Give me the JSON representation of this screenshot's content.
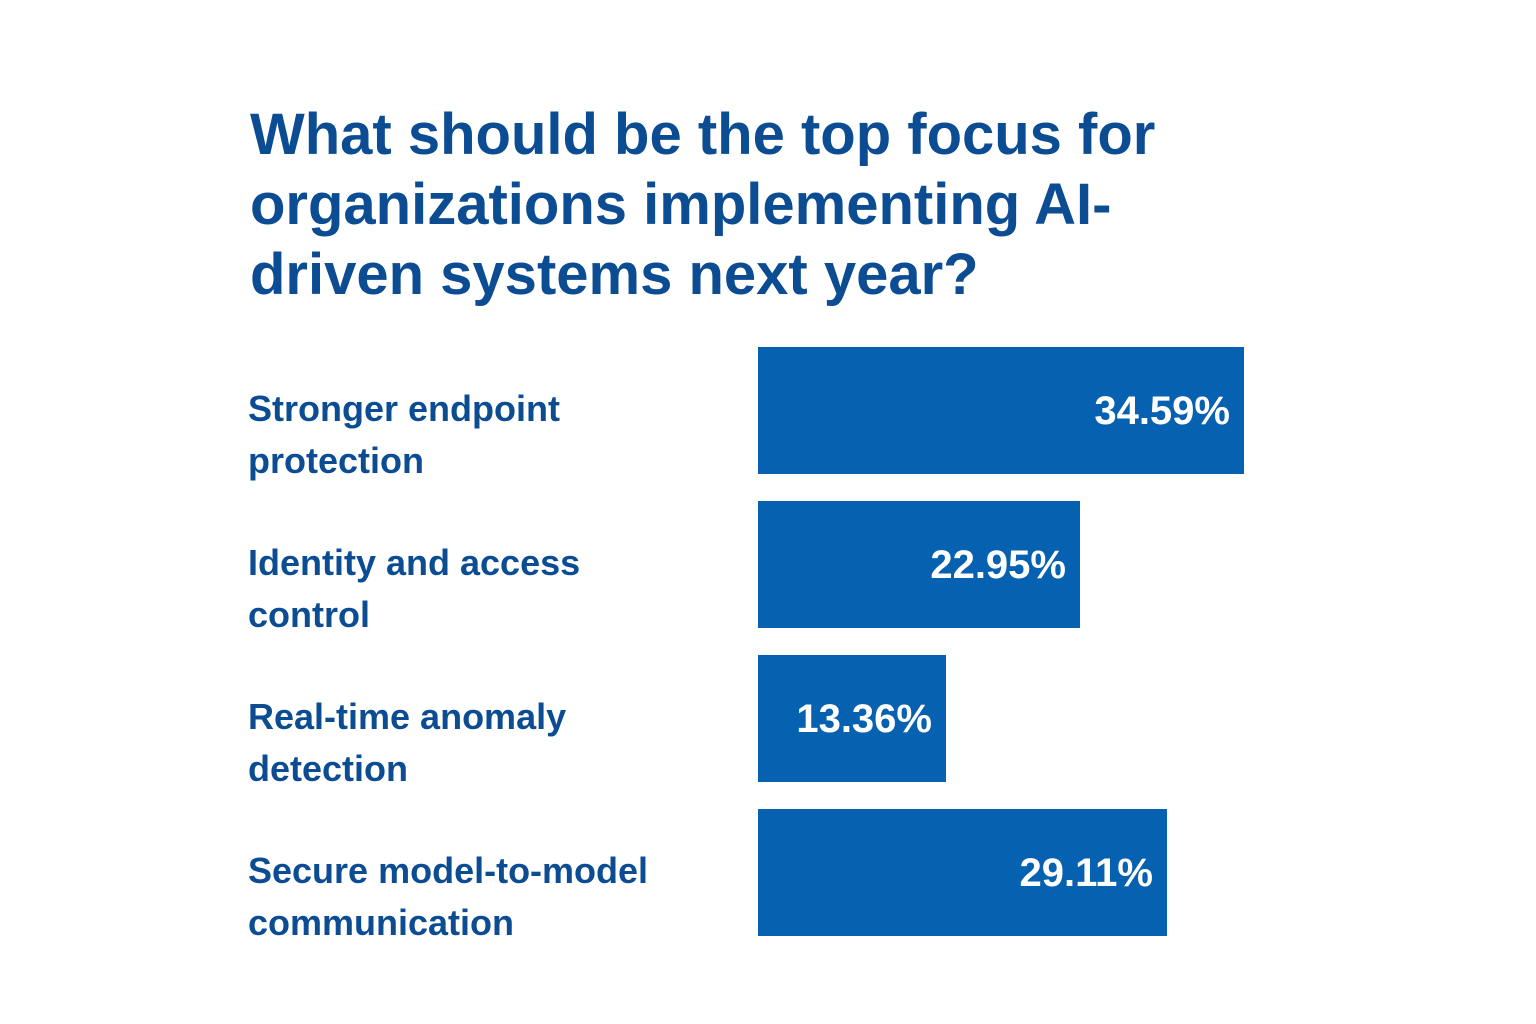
{
  "chart_data": {
    "type": "bar",
    "orientation": "horizontal",
    "title": "What should be the top focus for organizations implementing AI-driven systems next year?",
    "categories": [
      "Stronger endpoint protection",
      "Identity and access control",
      "Real-time anomaly detection",
      "Secure model-to-model communication"
    ],
    "values": [
      34.59,
      22.95,
      13.36,
      29.11
    ],
    "value_labels": [
      "34.59%",
      "22.95%",
      "13.36%",
      "29.11%"
    ],
    "unit": "%",
    "xlabel": "",
    "ylabel": "",
    "xlim": [
      0,
      34.59
    ],
    "grid": false,
    "legend": "none",
    "bar_color": "#0661b0",
    "text_color": "#0b4c93",
    "value_label_color": "#ffffff"
  }
}
